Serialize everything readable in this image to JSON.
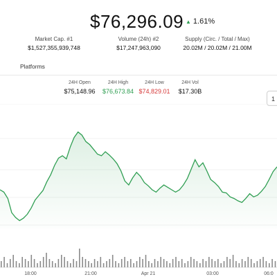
{
  "header": {
    "price": "$76,296.09",
    "change_pct": "1.61%",
    "change_color": "#2f9e52"
  },
  "stats": [
    {
      "label": "Market Cap. #1",
      "value": "$1,527,355,939,748"
    },
    {
      "label": "Volume (24h) #2",
      "value": "$17,247,963,090"
    },
    {
      "label": "Supply (Circ. / Total / Max)",
      "value": "20.02M / 20.02M / 21.00M"
    }
  ],
  "tabs": {
    "platforms": "Platforms"
  },
  "ohlc": [
    {
      "label": "24H Open",
      "value": "$75,148.96",
      "tone": "neutral"
    },
    {
      "label": "24H High",
      "value": "$76,673.84",
      "tone": "green"
    },
    {
      "label": "24H Low",
      "value": "$74,829.01",
      "tone": "red"
    },
    {
      "label": "24H Vol",
      "value": "$17.30B",
      "tone": "neutral"
    }
  ],
  "range_button": {
    "label": "1"
  },
  "chart_data": {
    "type": "area",
    "x_tick_labels": [
      "18:00",
      "21:00",
      "Apr 21",
      "03:00",
      "06:0"
    ],
    "line_color": "#2f9e52",
    "price_values": [
      74990,
      74960,
      74880,
      74700,
      74640,
      74600,
      74630,
      74680,
      74760,
      74860,
      74920,
      74980,
      75090,
      75180,
      75300,
      75390,
      75420,
      75380,
      75530,
      75650,
      75720,
      75680,
      75600,
      75560,
      75500,
      75440,
      75420,
      75470,
      75430,
      75380,
      75320,
      75230,
      75100,
      75050,
      75140,
      75210,
      75160,
      75080,
      75040,
      74990,
      74960,
      75010,
      75050,
      75020,
      74990,
      74960,
      74990,
      75050,
      75130,
      75250,
      75370,
      75280,
      75330,
      75230,
      75120,
      75080,
      75030,
      74960,
      74950,
      74900,
      74880,
      74850,
      74830,
      74880,
      74940,
      74900,
      74920,
      74970,
      75030,
      75120,
      75220,
      75280
    ],
    "volume_values": [
      3,
      5,
      2,
      4,
      6,
      3,
      2,
      5,
      4,
      3,
      6,
      4,
      2,
      3,
      5,
      7,
      4,
      3,
      2,
      4,
      6,
      5,
      3,
      2,
      4,
      3,
      9,
      5,
      4,
      3,
      2,
      4,
      3,
      5,
      2,
      3,
      4,
      6,
      3,
      2,
      4,
      5,
      3,
      4,
      2,
      3,
      5,
      4,
      6,
      3,
      2,
      4,
      3,
      5,
      4,
      3,
      2,
      4,
      5,
      3,
      4,
      2,
      3,
      5,
      4,
      3,
      2,
      4,
      3,
      5,
      4,
      3,
      4,
      2,
      3,
      5,
      4,
      6,
      3,
      2,
      4,
      3,
      5,
      4,
      2,
      3,
      4,
      5,
      3,
      2,
      4,
      3
    ],
    "grid": true
  }
}
